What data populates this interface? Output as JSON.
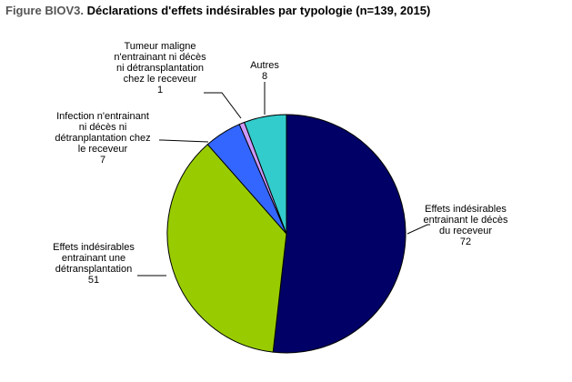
{
  "figure": {
    "prefix": "Figure BIOV3.",
    "title": "Déclarations d'effets indésirables par typologie (n=139, 2015)"
  },
  "chart_data": {
    "type": "pie",
    "title": "Déclarations d'effets indésirables par typologie (n=139, 2015)",
    "total": 139,
    "slices": [
      {
        "label": "Effets indésirables entrainant le décès du receveur",
        "value": 72,
        "color": "#000066"
      },
      {
        "label": "Effets indésirables entrainant une détransplantation",
        "value": 51,
        "color": "#99cc00"
      },
      {
        "label": "Infection n'entrainant ni décès ni détranplantation chez le receveur",
        "value": 7,
        "color": "#3366ff"
      },
      {
        "label": "Tumeur maligne n'entrainant ni décès ni détransplantation chez le receveur",
        "value": 1,
        "color": "#cc99ff"
      },
      {
        "label": "Autres",
        "value": 8,
        "color": "#33cccc"
      }
    ],
    "labels": [
      {
        "lines": [
          "Effets indésirables",
          "entrainant le décès",
          "du receveur"
        ],
        "value": "72"
      },
      {
        "lines": [
          "Effets indésirables",
          "entrainant une",
          "détransplantation"
        ],
        "value": "51"
      },
      {
        "lines": [
          "Infection n'entrainant",
          "ni décès ni",
          "détranplantation chez",
          "le receveur"
        ],
        "value": "7"
      },
      {
        "lines": [
          "Tumeur maligne",
          "n'entrainant ni décès",
          "ni détransplantation",
          "chez le receveur"
        ],
        "value": "1"
      },
      {
        "lines": [
          "Autres"
        ],
        "value": "8"
      }
    ]
  }
}
